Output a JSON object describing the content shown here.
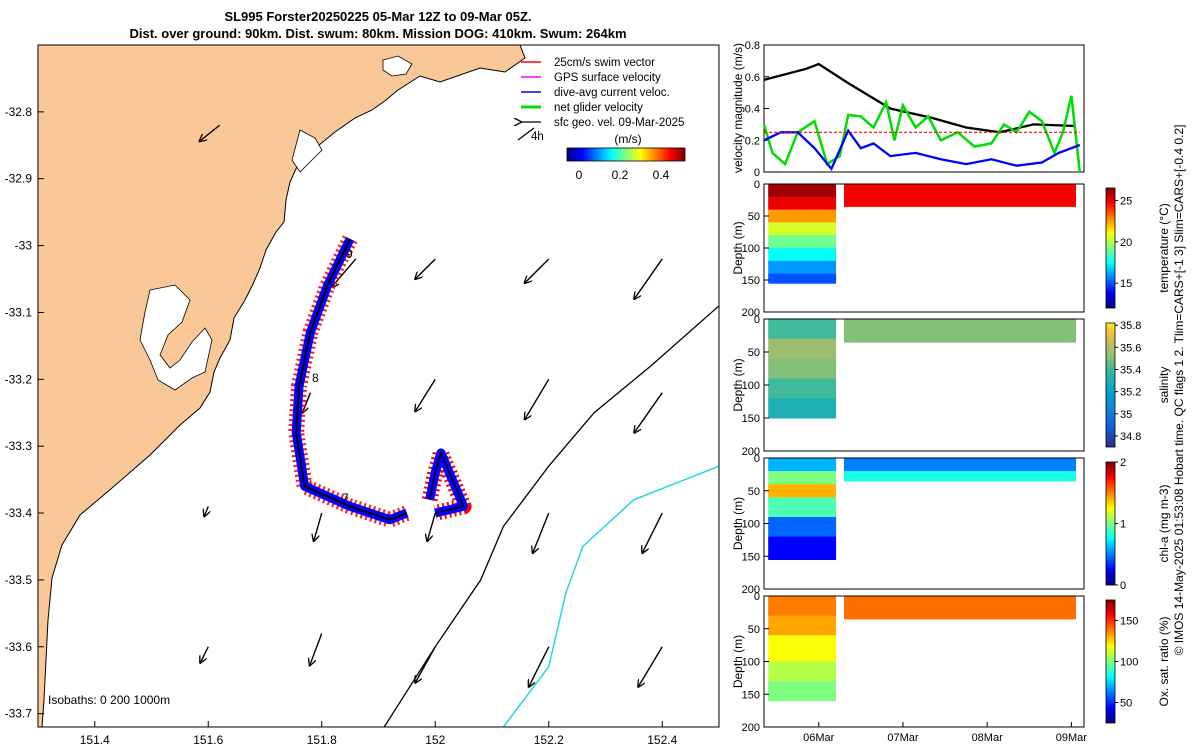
{
  "title": {
    "line1": "SL995 Forster20250225 05-Mar 12Z to 09-Mar 05Z.",
    "line2": "Dist. over ground: 90km. Dist. swum: 80km. Mission DOG: 410km. Swum: 264km"
  },
  "side_note": "© IMOS 14-May-2025 01:53:08 Hobart time. QC flags 1  2. Tlim=CARS+[-1 3] Slim=CARS+[-0.4 0.2]",
  "colors": {
    "land": "#FAC898",
    "swim": "#FF0000",
    "gps": "#FF00FF",
    "dive_avg": "#0000FF",
    "net": "#00DD00",
    "geo": "#000000",
    "iso200": "#000000",
    "iso1000": "#22D8E0",
    "speed_black": "#000000"
  },
  "map": {
    "legend": [
      "25cm/s swim vector",
      "GPS surface velocity",
      "dive-avg current veloc.",
      "net glider velocity",
      "sfc geo. vel. 09-Mar-2025"
    ],
    "time_label": "4h",
    "colorbar_unit": "(m/s)",
    "colorbar_ticks": [
      "0",
      "0.2",
      "0.4"
    ],
    "isobaths_text": "Isobaths: 0   200   1000m",
    "waypoints": [
      "9",
      "8",
      "7"
    ]
  },
  "chart_data": [
    {
      "type": "map",
      "xlim": [
        151.3,
        152.5
      ],
      "ylim": [
        -33.72,
        -32.7
      ],
      "xticks": [
        151.4,
        151.6,
        151.8,
        152,
        152.2,
        152.4
      ],
      "xtick_labels": [
        "151.4",
        "151.6",
        "151.8",
        "152",
        "152.2",
        "152.4"
      ],
      "yticks": [
        -32.8,
        -32.9,
        -33,
        -33.1,
        -33.2,
        -33.3,
        -33.4,
        -33.5,
        -33.6,
        -33.7
      ],
      "ytick_labels": [
        "-32.8",
        "-32.9",
        "-33",
        "-33.1",
        "-33.2",
        "-33.3",
        "-33.4",
        "-33.5",
        "-33.6",
        "-33.7"
      ],
      "glider_track": [
        [
          151.85,
          -32.99
        ],
        [
          151.81,
          -33.06
        ],
        [
          151.78,
          -33.13
        ],
        [
          151.76,
          -33.21
        ],
        [
          151.755,
          -33.28
        ],
        [
          151.77,
          -33.36
        ],
        [
          151.85,
          -33.39
        ],
        [
          151.92,
          -33.41
        ],
        [
          151.95,
          -33.4
        ]
      ],
      "glider_track_east": [
        [
          151.99,
          -33.38
        ],
        [
          152.0,
          -33.34
        ],
        [
          152.01,
          -33.31
        ],
        [
          152.05,
          -33.39
        ],
        [
          152.0,
          -33.4
        ]
      ],
      "isobath_200": [
        [
          151.91,
          -33.72
        ],
        [
          152.0,
          -33.6
        ],
        [
          152.08,
          -33.5
        ],
        [
          152.12,
          -33.42
        ],
        [
          152.2,
          -33.33
        ],
        [
          152.28,
          -33.25
        ],
        [
          152.38,
          -33.18
        ],
        [
          152.5,
          -33.09
        ]
      ],
      "isobath_1000": [
        [
          152.12,
          -33.72
        ],
        [
          152.2,
          -33.63
        ],
        [
          152.23,
          -33.52
        ],
        [
          152.26,
          -33.45
        ],
        [
          152.35,
          -33.38
        ],
        [
          152.5,
          -33.33
        ]
      ],
      "geo_vectors": [
        {
          "lon": 151.62,
          "lat": -32.82,
          "u": -0.1,
          "v": -0.08
        },
        {
          "lon": 151.86,
          "lat": -33.02,
          "u": -0.12,
          "v": -0.14
        },
        {
          "lon": 152.0,
          "lat": -33.02,
          "u": -0.1,
          "v": -0.1
        },
        {
          "lon": 152.2,
          "lat": -33.02,
          "u": -0.12,
          "v": -0.12
        },
        {
          "lon": 152.4,
          "lat": -33.02,
          "u": -0.14,
          "v": -0.2
        },
        {
          "lon": 151.78,
          "lat": -33.22,
          "u": -0.04,
          "v": -0.1
        },
        {
          "lon": 152.0,
          "lat": -33.2,
          "u": -0.1,
          "v": -0.16
        },
        {
          "lon": 152.2,
          "lat": -33.2,
          "u": -0.12,
          "v": -0.2
        },
        {
          "lon": 152.4,
          "lat": -33.22,
          "u": -0.14,
          "v": -0.2
        },
        {
          "lon": 151.6,
          "lat": -33.39,
          "u": -0.02,
          "v": -0.05
        },
        {
          "lon": 151.8,
          "lat": -33.4,
          "u": -0.04,
          "v": -0.14
        },
        {
          "lon": 152.0,
          "lat": -33.4,
          "u": -0.04,
          "v": -0.14
        },
        {
          "lon": 152.2,
          "lat": -33.4,
          "u": -0.08,
          "v": -0.2
        },
        {
          "lon": 152.4,
          "lat": -33.4,
          "u": -0.1,
          "v": -0.2
        },
        {
          "lon": 151.6,
          "lat": -33.6,
          "u": -0.04,
          "v": -0.08
        },
        {
          "lon": 151.8,
          "lat": -33.58,
          "u": -0.06,
          "v": -0.16
        },
        {
          "lon": 152.0,
          "lat": -33.6,
          "u": -0.1,
          "v": -0.18
        },
        {
          "lon": 152.2,
          "lat": -33.6,
          "u": -0.1,
          "v": -0.2
        },
        {
          "lon": 152.4,
          "lat": -33.6,
          "u": -0.12,
          "v": -0.2
        }
      ]
    },
    {
      "type": "line",
      "ylabel": "velocity magnitude (m/s)",
      "ylim": [
        0,
        0.8
      ],
      "yticks": [
        0,
        0.2,
        0.4,
        0.6,
        0.8
      ],
      "ytick_labels": [
        "0",
        "0.2",
        "0.4",
        "0.6",
        "0.8"
      ],
      "xlim": [
        5.5,
        9.3
      ],
      "series": [
        {
          "name": "glider speed",
          "color": "#000000",
          "x": [
            5.5,
            6.0,
            6.15,
            6.5,
            7.0,
            7.5,
            7.9,
            8.3,
            8.7,
            9.2
          ],
          "y": [
            0.58,
            0.65,
            0.68,
            0.56,
            0.4,
            0.34,
            0.28,
            0.25,
            0.3,
            0.29
          ]
        },
        {
          "name": "net glider velocity",
          "color": "#00DD00",
          "x": [
            5.5,
            5.6,
            5.75,
            5.9,
            6.1,
            6.25,
            6.4,
            6.5,
            6.65,
            6.8,
            6.95,
            7.05,
            7.15,
            7.3,
            7.45,
            7.6,
            7.8,
            8.0,
            8.2,
            8.35,
            8.5,
            8.65,
            8.8,
            8.95,
            9.05,
            9.15,
            9.25
          ],
          "y": [
            0.3,
            0.12,
            0.05,
            0.25,
            0.32,
            0.05,
            0.1,
            0.36,
            0.35,
            0.28,
            0.44,
            0.2,
            0.42,
            0.28,
            0.35,
            0.2,
            0.25,
            0.16,
            0.18,
            0.3,
            0.25,
            0.38,
            0.32,
            0.12,
            0.25,
            0.48,
            0.0
          ]
        },
        {
          "name": "dive-avg current veloc.",
          "color": "#0000FF",
          "x": [
            5.5,
            5.7,
            5.9,
            6.1,
            6.3,
            6.5,
            6.65,
            6.8,
            7.0,
            7.3,
            7.6,
            7.9,
            8.2,
            8.5,
            8.8,
            9.0,
            9.25
          ],
          "y": [
            0.2,
            0.25,
            0.25,
            0.15,
            0.02,
            0.26,
            0.15,
            0.18,
            0.1,
            0.12,
            0.08,
            0.05,
            0.08,
            0.04,
            0.06,
            0.12,
            0.17
          ]
        },
        {
          "name": "swim speed",
          "color": "#FF0000",
          "x": [
            5.5,
            9.25
          ],
          "y": [
            0.25,
            0.25
          ]
        }
      ]
    },
    {
      "type": "heatmap",
      "variable": "temperature",
      "clabel": "temperature (°C)",
      "cticks": [
        "15",
        "20",
        "25"
      ],
      "clim": [
        12,
        26.5
      ],
      "ylabel": "Depth (m)",
      "yticks": [
        "0",
        "50",
        "100",
        "150",
        "200"
      ],
      "ylim": [
        0,
        200
      ],
      "xlim": [
        5.5,
        9.3
      ],
      "segments": [
        {
          "x_start": 5.55,
          "x_end": 6.35,
          "max_depth": 155,
          "depths": [
            0,
            20,
            40,
            60,
            80,
            100,
            120,
            140,
            155
          ],
          "values": [
            26,
            25,
            22.5,
            20.5,
            19,
            17.5,
            16,
            15,
            14.5
          ]
        },
        {
          "x_start": 6.45,
          "x_end": 9.2,
          "max_depth": 35,
          "depths": [
            0,
            35
          ],
          "values": [
            24.8,
            23.5
          ]
        }
      ]
    },
    {
      "type": "heatmap",
      "variable": "salinity",
      "clabel": "salinity",
      "cticks": [
        "34.8",
        "35",
        "35.2",
        "35.4",
        "35.6",
        "35.8"
      ],
      "clim": [
        34.7,
        35.82
      ],
      "ylabel": "Depth (m)",
      "yticks": [
        "0",
        "50",
        "100",
        "150",
        "200"
      ],
      "ylim": [
        0,
        200
      ],
      "xlim": [
        5.5,
        9.3
      ],
      "segments": [
        {
          "x_start": 5.55,
          "x_end": 6.35,
          "max_depth": 155,
          "depths": [
            0,
            30,
            60,
            90,
            120,
            150
          ],
          "values": [
            35.4,
            35.55,
            35.5,
            35.4,
            35.3,
            35.25
          ]
        },
        {
          "x_start": 6.45,
          "x_end": 9.2,
          "max_depth": 35,
          "depths": [
            0,
            35
          ],
          "values": [
            35.5,
            35.6
          ]
        }
      ]
    },
    {
      "type": "heatmap",
      "variable": "chl-a",
      "clabel": "chl-a (mg m-3)",
      "cticks": [
        "0",
        "1",
        "2"
      ],
      "clim": [
        0,
        2
      ],
      "ylabel": "Depth (m)",
      "yticks": [
        "0",
        "50",
        "100",
        "150",
        "200"
      ],
      "ylim": [
        0,
        200
      ],
      "xlim": [
        5.5,
        9.3
      ],
      "segments": [
        {
          "x_start": 5.55,
          "x_end": 6.35,
          "max_depth": 155,
          "depths": [
            0,
            20,
            40,
            60,
            90,
            120,
            155
          ],
          "values": [
            0.6,
            1.0,
            1.4,
            0.9,
            0.45,
            0.25,
            0.15
          ]
        },
        {
          "x_start": 6.45,
          "x_end": 9.2,
          "max_depth": 35,
          "depths": [
            0,
            20,
            35
          ],
          "values": [
            0.5,
            0.8,
            1.3
          ]
        }
      ]
    },
    {
      "type": "heatmap",
      "variable": "oxygen saturation",
      "clabel": "Ox. sat. ratio (%)",
      "cticks": [
        "50",
        "100",
        "150"
      ],
      "clim": [
        25,
        175
      ],
      "ylabel": "Depth (m)",
      "yticks": [
        "0",
        "50",
        "100",
        "150",
        "200"
      ],
      "ylim": [
        0,
        200
      ],
      "xlim": [
        5.5,
        9.3
      ],
      "xticks": [
        6,
        7,
        8,
        9
      ],
      "xtick_labels": [
        "06Mar",
        "07Mar",
        "08Mar",
        "09Mar"
      ],
      "segments": [
        {
          "x_start": 5.55,
          "x_end": 6.35,
          "max_depth": 160,
          "depths": [
            0,
            30,
            60,
            100,
            130,
            160
          ],
          "values": [
            138,
            132,
            118,
            108,
            100,
            94
          ]
        },
        {
          "x_start": 6.45,
          "x_end": 9.2,
          "max_depth": 35,
          "depths": [
            0,
            35
          ],
          "values": [
            140,
            135
          ]
        }
      ]
    }
  ]
}
